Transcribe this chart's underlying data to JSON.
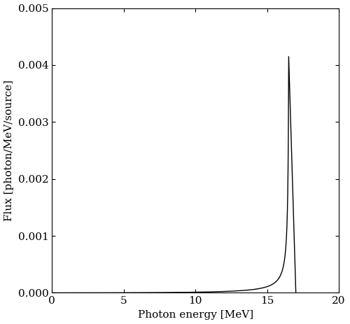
{
  "title": "",
  "xlabel": "Photon energy [MeV]",
  "ylabel": "Flux [photon/MeV/source]",
  "xlim": [
    0,
    20
  ],
  "ylim": [
    0,
    0.005
  ],
  "xticks": [
    0,
    5,
    10,
    15,
    20
  ],
  "yticks": [
    0,
    0.001,
    0.002,
    0.003,
    0.004,
    0.005
  ],
  "line_color": "#000000",
  "line_width": 1.0,
  "background_color": "#ffffff",
  "peak_energy": 16.5,
  "cutoff_energy": 17.0,
  "peak_flux": 0.00415,
  "epsilon": 0.003,
  "power": 2.0,
  "figsize": [
    5.0,
    4.63
  ],
  "dpi": 100
}
